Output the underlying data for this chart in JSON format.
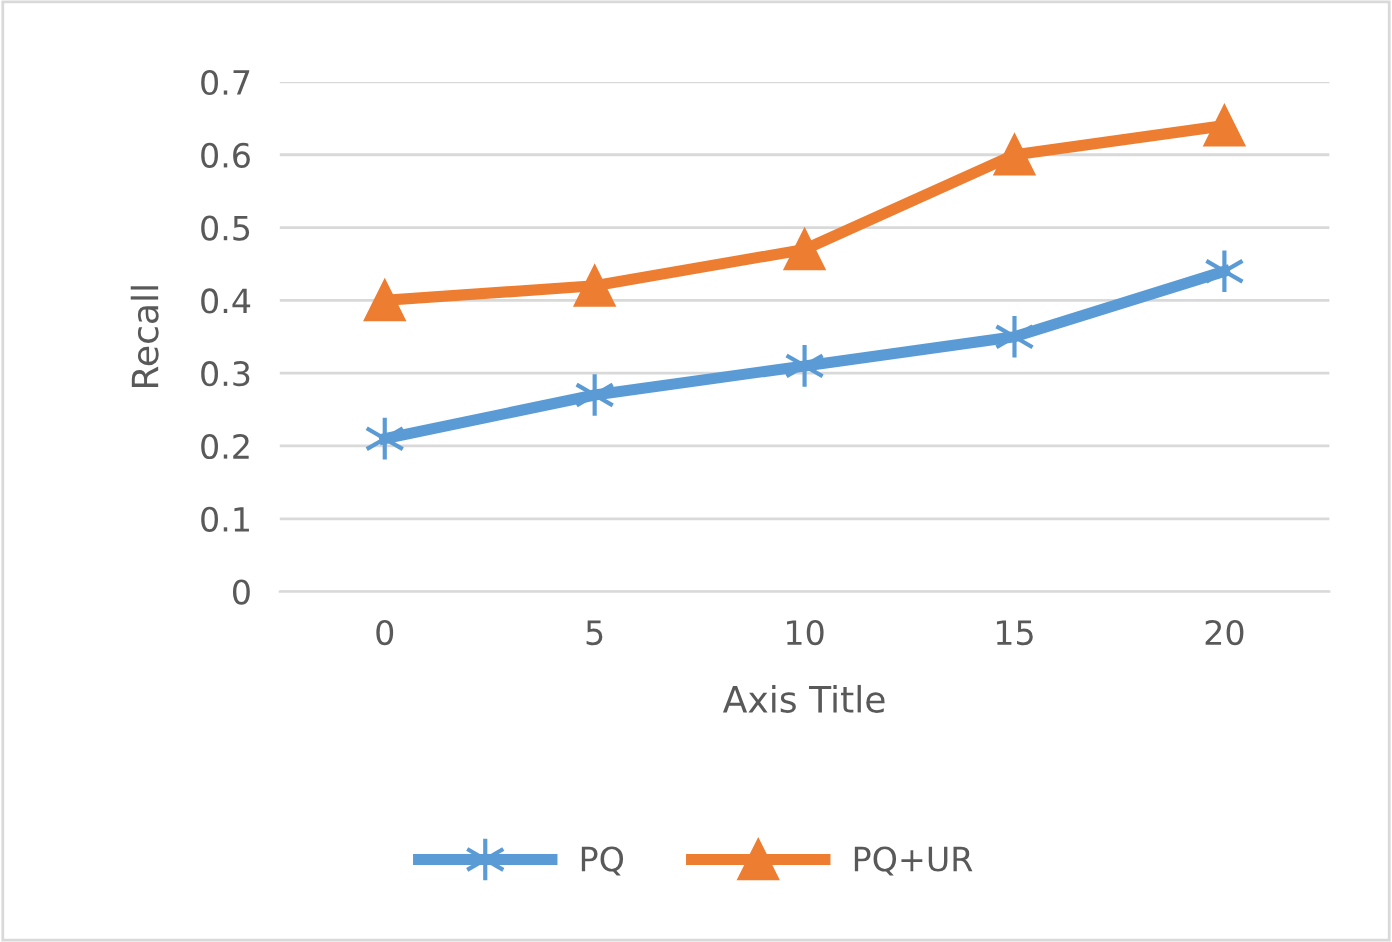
{
  "chart_data": {
    "type": "line",
    "xlabel": "Axis Title",
    "ylabel": "Recall",
    "categories": [
      "0",
      "5",
      "10",
      "15",
      "20"
    ],
    "series": [
      {
        "name": "PQ",
        "color": "#5b9bd5",
        "marker": "cross",
        "values": [
          0.21,
          0.27,
          0.31,
          0.35,
          0.44
        ]
      },
      {
        "name": "PQ+UR",
        "color": "#ed7d31",
        "marker": "triangle",
        "values": [
          0.4,
          0.42,
          0.47,
          0.6,
          0.64
        ]
      }
    ],
    "ylim": [
      0,
      0.7
    ],
    "yticks": [
      0,
      0.1,
      0.2,
      0.3,
      0.4,
      0.5,
      0.6,
      0.7
    ],
    "grid": "y",
    "legend": "bottom"
  }
}
